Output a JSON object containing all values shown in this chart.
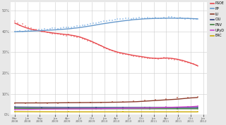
{
  "bg_color": "#e8e8e8",
  "plot_bg": "#ffffff",
  "series": {
    "PSOE": {
      "color": "#e8474c",
      "scatter_color": "#f0a0a0",
      "trend": [
        [
          0,
          0.44
        ],
        [
          40,
          0.428
        ],
        [
          80,
          0.418
        ],
        [
          120,
          0.41
        ],
        [
          160,
          0.405
        ],
        [
          200,
          0.4
        ],
        [
          240,
          0.396
        ],
        [
          280,
          0.392
        ],
        [
          320,
          0.389
        ],
        [
          360,
          0.386
        ],
        [
          400,
          0.383
        ],
        [
          440,
          0.379
        ],
        [
          480,
          0.373
        ],
        [
          520,
          0.364
        ],
        [
          560,
          0.354
        ],
        [
          600,
          0.342
        ],
        [
          640,
          0.33
        ],
        [
          680,
          0.318
        ],
        [
          720,
          0.308
        ],
        [
          760,
          0.3
        ],
        [
          800,
          0.294
        ],
        [
          840,
          0.289
        ],
        [
          880,
          0.284
        ],
        [
          920,
          0.28
        ],
        [
          960,
          0.276
        ],
        [
          1000,
          0.272
        ],
        [
          1040,
          0.27
        ],
        [
          1080,
          0.27
        ],
        [
          1120,
          0.272
        ],
        [
          1160,
          0.27
        ],
        [
          1200,
          0.266
        ],
        [
          1240,
          0.26
        ],
        [
          1280,
          0.252
        ],
        [
          1320,
          0.243
        ],
        [
          1351,
          0.235
        ]
      ],
      "scatter": [
        [
          0,
          0.45
        ],
        [
          20,
          0.44
        ],
        [
          40,
          0.43
        ],
        [
          60,
          0.435
        ],
        [
          80,
          0.425
        ],
        [
          100,
          0.42
        ],
        [
          120,
          0.415
        ],
        [
          140,
          0.41
        ],
        [
          160,
          0.408
        ],
        [
          180,
          0.405
        ],
        [
          200,
          0.4
        ],
        [
          220,
          0.398
        ],
        [
          240,
          0.395
        ],
        [
          260,
          0.392
        ],
        [
          280,
          0.39
        ],
        [
          300,
          0.388
        ],
        [
          320,
          0.39
        ],
        [
          340,
          0.385
        ],
        [
          360,
          0.382
        ],
        [
          380,
          0.38
        ],
        [
          400,
          0.385
        ],
        [
          420,
          0.378
        ],
        [
          440,
          0.375
        ],
        [
          460,
          0.37
        ],
        [
          480,
          0.372
        ],
        [
          500,
          0.365
        ],
        [
          520,
          0.36
        ],
        [
          540,
          0.355
        ],
        [
          560,
          0.352
        ],
        [
          580,
          0.345
        ],
        [
          600,
          0.342
        ],
        [
          620,
          0.335
        ],
        [
          640,
          0.33
        ],
        [
          660,
          0.322
        ],
        [
          680,
          0.318
        ],
        [
          700,
          0.312
        ],
        [
          720,
          0.308
        ],
        [
          740,
          0.302
        ],
        [
          760,
          0.298
        ],
        [
          780,
          0.295
        ],
        [
          800,
          0.292
        ],
        [
          820,
          0.29
        ],
        [
          840,
          0.288
        ],
        [
          860,
          0.285
        ],
        [
          880,
          0.282
        ],
        [
          900,
          0.28
        ],
        [
          920,
          0.278
        ],
        [
          940,
          0.275
        ],
        [
          960,
          0.275
        ],
        [
          980,
          0.272
        ],
        [
          1000,
          0.27
        ],
        [
          1020,
          0.272
        ],
        [
          1040,
          0.27
        ],
        [
          1060,
          0.268
        ],
        [
          1080,
          0.27
        ],
        [
          1100,
          0.275
        ],
        [
          1120,
          0.272
        ],
        [
          1140,
          0.268
        ],
        [
          1160,
          0.268
        ],
        [
          1180,
          0.265
        ],
        [
          1200,
          0.265
        ],
        [
          1220,
          0.26
        ],
        [
          1240,
          0.258
        ],
        [
          1260,
          0.252
        ],
        [
          1280,
          0.25
        ],
        [
          1300,
          0.248
        ],
        [
          1320,
          0.242
        ],
        [
          1340,
          0.238
        ],
        [
          1351,
          0.232
        ]
      ]
    },
    "PP": {
      "color": "#6699cc",
      "scatter_color": "#aaccee",
      "trend": [
        [
          0,
          0.398
        ],
        [
          80,
          0.4
        ],
        [
          160,
          0.402
        ],
        [
          240,
          0.405
        ],
        [
          320,
          0.408
        ],
        [
          400,
          0.412
        ],
        [
          480,
          0.418
        ],
        [
          560,
          0.426
        ],
        [
          640,
          0.435
        ],
        [
          720,
          0.443
        ],
        [
          800,
          0.45
        ],
        [
          880,
          0.456
        ],
        [
          960,
          0.46
        ],
        [
          1040,
          0.462
        ],
        [
          1120,
          0.463
        ],
        [
          1200,
          0.463
        ],
        [
          1280,
          0.462
        ],
        [
          1351,
          0.46
        ]
      ],
      "scatter": [
        [
          0,
          0.4
        ],
        [
          20,
          0.398
        ],
        [
          40,
          0.402
        ],
        [
          60,
          0.4
        ],
        [
          80,
          0.402
        ],
        [
          100,
          0.405
        ],
        [
          120,
          0.403
        ],
        [
          140,
          0.405
        ],
        [
          160,
          0.407
        ],
        [
          180,
          0.408
        ],
        [
          200,
          0.41
        ],
        [
          220,
          0.412
        ],
        [
          240,
          0.41
        ],
        [
          260,
          0.412
        ],
        [
          280,
          0.415
        ],
        [
          300,
          0.415
        ],
        [
          320,
          0.412
        ],
        [
          340,
          0.415
        ],
        [
          360,
          0.418
        ],
        [
          380,
          0.42
        ],
        [
          400,
          0.418
        ],
        [
          420,
          0.42
        ],
        [
          440,
          0.422
        ],
        [
          460,
          0.425
        ],
        [
          480,
          0.425
        ],
        [
          500,
          0.428
        ],
        [
          520,
          0.43
        ],
        [
          540,
          0.432
        ],
        [
          560,
          0.435
        ],
        [
          580,
          0.438
        ],
        [
          600,
          0.44
        ],
        [
          620,
          0.442
        ],
        [
          640,
          0.445
        ],
        [
          660,
          0.448
        ],
        [
          680,
          0.45
        ],
        [
          700,
          0.452
        ],
        [
          720,
          0.452
        ],
        [
          740,
          0.455
        ],
        [
          760,
          0.458
        ],
        [
          780,
          0.46
        ],
        [
          800,
          0.458
        ],
        [
          820,
          0.462
        ],
        [
          840,
          0.462
        ],
        [
          860,
          0.46
        ],
        [
          880,
          0.462
        ],
        [
          900,
          0.462
        ],
        [
          920,
          0.465
        ],
        [
          940,
          0.462
        ],
        [
          960,
          0.462
        ],
        [
          980,
          0.465
        ],
        [
          1000,
          0.462
        ],
        [
          1020,
          0.462
        ],
        [
          1040,
          0.465
        ],
        [
          1060,
          0.463
        ],
        [
          1080,
          0.462
        ],
        [
          1100,
          0.465
        ],
        [
          1120,
          0.462
        ],
        [
          1140,
          0.468
        ],
        [
          1160,
          0.47
        ],
        [
          1180,
          0.465
        ],
        [
          1200,
          0.462
        ],
        [
          1220,
          0.465
        ],
        [
          1240,
          0.462
        ],
        [
          1260,
          0.46
        ],
        [
          1280,
          0.462
        ],
        [
          1300,
          0.458
        ],
        [
          1320,
          0.46
        ],
        [
          1340,
          0.458
        ],
        [
          1351,
          0.458
        ]
      ]
    },
    "IU": {
      "color": "#8b3a2a",
      "scatter_color": "#cc8877",
      "trend": [
        [
          0,
          0.056
        ],
        [
          200,
          0.056
        ],
        [
          400,
          0.057
        ],
        [
          600,
          0.058
        ],
        [
          800,
          0.06
        ],
        [
          900,
          0.062
        ],
        [
          1000,
          0.066
        ],
        [
          1100,
          0.07
        ],
        [
          1200,
          0.074
        ],
        [
          1300,
          0.08
        ],
        [
          1351,
          0.082
        ]
      ],
      "scatter": [
        [
          0,
          0.056
        ],
        [
          80,
          0.055
        ],
        [
          160,
          0.057
        ],
        [
          240,
          0.055
        ],
        [
          320,
          0.056
        ],
        [
          400,
          0.057
        ],
        [
          480,
          0.058
        ],
        [
          560,
          0.058
        ],
        [
          640,
          0.059
        ],
        [
          720,
          0.06
        ],
        [
          800,
          0.062
        ],
        [
          880,
          0.064
        ],
        [
          960,
          0.068
        ],
        [
          1040,
          0.072
        ],
        [
          1120,
          0.076
        ],
        [
          1200,
          0.08
        ],
        [
          1280,
          0.082
        ],
        [
          1351,
          0.085
        ]
      ]
    },
    "CiU": {
      "color": "#2c3e7a",
      "scatter_color": "#8888bb",
      "trend": [
        [
          0,
          0.036
        ],
        [
          400,
          0.034
        ],
        [
          800,
          0.034
        ],
        [
          1200,
          0.034
        ],
        [
          1351,
          0.034
        ]
      ],
      "scatter": [
        [
          0,
          0.036
        ],
        [
          200,
          0.034
        ],
        [
          400,
          0.034
        ],
        [
          600,
          0.034
        ],
        [
          800,
          0.034
        ],
        [
          1000,
          0.034
        ],
        [
          1200,
          0.034
        ],
        [
          1351,
          0.034
        ]
      ]
    },
    "PNV": {
      "color": "#3a7a3a",
      "scatter_color": "#88bb88",
      "trend": [
        [
          0,
          0.03
        ],
        [
          400,
          0.028
        ],
        [
          800,
          0.028
        ],
        [
          1200,
          0.028
        ],
        [
          1351,
          0.028
        ]
      ],
      "scatter": [
        [
          0,
          0.03
        ],
        [
          200,
          0.028
        ],
        [
          400,
          0.028
        ],
        [
          600,
          0.028
        ],
        [
          800,
          0.028
        ],
        [
          1000,
          0.028
        ],
        [
          1200,
          0.028
        ],
        [
          1351,
          0.028
        ]
      ]
    },
    "UPyD": {
      "color": "#cc44cc",
      "scatter_color": "#dd88dd",
      "trend": [
        [
          0,
          0.024
        ],
        [
          200,
          0.026
        ],
        [
          400,
          0.027
        ],
        [
          600,
          0.028
        ],
        [
          800,
          0.03
        ],
        [
          1000,
          0.032
        ],
        [
          1100,
          0.034
        ],
        [
          1200,
          0.036
        ],
        [
          1300,
          0.038
        ],
        [
          1351,
          0.04
        ]
      ],
      "scatter": [
        [
          0,
          0.024
        ],
        [
          160,
          0.026
        ],
        [
          320,
          0.027
        ],
        [
          480,
          0.028
        ],
        [
          640,
          0.029
        ],
        [
          800,
          0.031
        ],
        [
          960,
          0.034
        ],
        [
          1120,
          0.036
        ],
        [
          1280,
          0.038
        ],
        [
          1351,
          0.04
        ]
      ]
    },
    "ERC": {
      "color": "#ccaa00",
      "scatter_color": "#ddcc55",
      "trend": [
        [
          0,
          0.014
        ],
        [
          400,
          0.013
        ],
        [
          800,
          0.013
        ],
        [
          1200,
          0.013
        ],
        [
          1351,
          0.013
        ]
      ],
      "scatter": [
        [
          0,
          0.014
        ],
        [
          400,
          0.013
        ],
        [
          800,
          0.013
        ],
        [
          1200,
          0.013
        ],
        [
          1351,
          0.013
        ]
      ]
    }
  },
  "xtick_dates": [
    [
      "Mar\n2008",
      0
    ],
    [
      "Jun\n2008",
      93
    ],
    [
      "Sep\n2008",
      185
    ],
    [
      "Jan\n2009",
      298
    ],
    [
      "Apr\n2009",
      388
    ],
    [
      "Jul\n2009",
      478
    ],
    [
      "Oct\n2009",
      571
    ],
    [
      "Jan\n2010",
      663
    ],
    [
      "Apr\n2010",
      752
    ],
    [
      "Jul\n2010",
      843
    ],
    [
      "Oct\n2010",
      935
    ],
    [
      "Jan\n2011",
      1028
    ],
    [
      "Apr\n2011",
      1118
    ],
    [
      "Jul\n2011",
      1208
    ],
    [
      "Oct\n2011",
      1301
    ],
    [
      "Jan\n2012",
      1393
    ]
  ],
  "yticks": [
    0.0,
    0.1,
    0.2,
    0.3,
    0.4,
    0.5
  ],
  "ylim": [
    0.0,
    0.54
  ],
  "xlim": [
    -30,
    1420
  ],
  "legend_order": [
    "PSOE",
    "PP",
    "IU",
    "CiU",
    "PNV",
    "UPyD",
    "ERC"
  ]
}
